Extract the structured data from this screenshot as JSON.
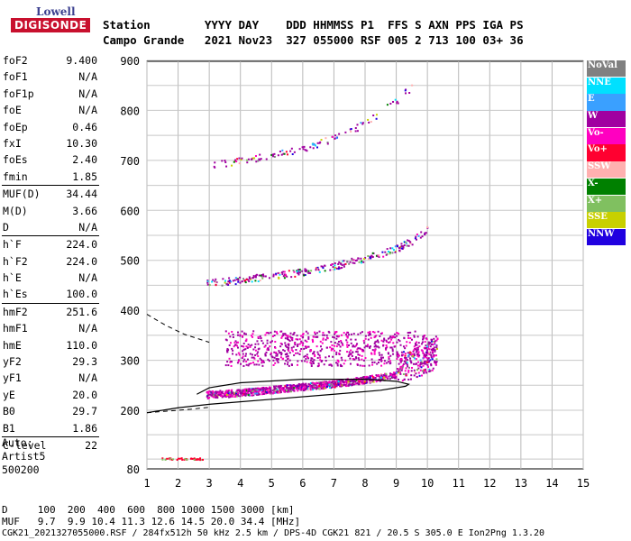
{
  "logo": {
    "brand_top": "Lowell",
    "brand_bottom": "DIGISONDE"
  },
  "header": {
    "row1": "Station        YYYY DAY    DDD HHMMSS P1  FFS S AXN PPS IGA PS",
    "row2": "Campo Grande   2021 Nov23  327 055000 RSF 005 2 713 100 03+ 36"
  },
  "params": [
    {
      "label": "foF2",
      "value": "9.400"
    },
    {
      "label": "foF1",
      "value": "N/A"
    },
    {
      "label": "foF1p",
      "value": "N/A"
    },
    {
      "label": "foE",
      "value": "N/A"
    },
    {
      "label": "foEp",
      "value": "0.46"
    },
    {
      "label": "fxI",
      "value": "10.30"
    },
    {
      "label": "foEs",
      "value": "2.40"
    },
    {
      "label": "fmin",
      "value": "1.85"
    },
    {
      "label": "MUF(D)",
      "value": "34.44",
      "sep": true
    },
    {
      "label": "M(D)",
      "value": "3.66"
    },
    {
      "label": "D",
      "value": "N/A"
    },
    {
      "label": "h`F",
      "value": "224.0",
      "sep": true
    },
    {
      "label": "h`F2",
      "value": "224.0"
    },
    {
      "label": "h`E",
      "value": "N/A"
    },
    {
      "label": "h`Es",
      "value": "100.0"
    },
    {
      "label": "hmF2",
      "value": "251.6",
      "sep": true
    },
    {
      "label": "hmF1",
      "value": "N/A"
    },
    {
      "label": "hmE",
      "value": "110.0"
    },
    {
      "label": "yF2",
      "value": "29.3"
    },
    {
      "label": "yF1",
      "value": "N/A"
    },
    {
      "label": "yE",
      "value": "20.0"
    },
    {
      "label": "B0",
      "value": "29.7"
    },
    {
      "label": "B1",
      "value": "1.86"
    },
    {
      "label": "C-level",
      "value": "22",
      "sep": true
    }
  ],
  "auto": {
    "line1": "Auto:",
    "line2": "Artist5",
    "line3": "500200"
  },
  "legend": [
    {
      "label": "NoVal",
      "color": "#808080"
    },
    {
      "label": "NNE",
      "color": "#00e0ff"
    },
    {
      "label": "E",
      "color": "#3aa0ff"
    },
    {
      "label": "W",
      "color": "#a000a0"
    },
    {
      "label": "Vo-",
      "color": "#ff00c0"
    },
    {
      "label": "Vo+",
      "color": "#ff0030"
    },
    {
      "label": "SSW",
      "color": "#ffb0b0"
    },
    {
      "label": "X-",
      "color": "#008000"
    },
    {
      "label": "X+",
      "color": "#80c060"
    },
    {
      "label": "SSE",
      "color": "#c8d000"
    },
    {
      "label": "NNW",
      "color": "#2000e0"
    }
  ],
  "chart_data": {
    "type": "scatter",
    "title": "",
    "xlabel": "",
    "ylabel": "",
    "xlim": [
      1,
      15
    ],
    "ylim": [
      80,
      900
    ],
    "x_ticks": [
      "1",
      "2",
      "3",
      "4",
      "5",
      "6",
      "7",
      "8",
      "9",
      "10",
      "11",
      "12",
      "13",
      "14",
      "15"
    ],
    "y_ticks": [
      "80",
      "200",
      "300",
      "400",
      "500",
      "600",
      "700",
      "800",
      "900"
    ],
    "grid": true,
    "series": [
      {
        "name": "trace-1",
        "values": [
          [
            2.9,
            228
          ],
          [
            4,
            232
          ],
          [
            5,
            238
          ],
          [
            6,
            244
          ],
          [
            7,
            250
          ],
          [
            8,
            258
          ],
          [
            9,
            268
          ],
          [
            9.5,
            276
          ],
          [
            10,
            288
          ],
          [
            10.3,
            300
          ]
        ]
      },
      {
        "name": "trace-2",
        "values": [
          [
            2.9,
            455
          ],
          [
            4,
            462
          ],
          [
            5,
            470
          ],
          [
            6,
            478
          ],
          [
            7,
            490
          ],
          [
            8,
            505
          ],
          [
            9,
            525
          ],
          [
            9.5,
            540
          ],
          [
            10,
            565
          ]
        ]
      },
      {
        "name": "trace-3",
        "values": [
          [
            2.9,
            690
          ],
          [
            4,
            700
          ],
          [
            5,
            712
          ],
          [
            6,
            726
          ],
          [
            7,
            745
          ],
          [
            8,
            775
          ],
          [
            9,
            820
          ],
          [
            9.5,
            850
          ]
        ]
      },
      {
        "name": "profile",
        "values": [
          [
            1,
            195
          ],
          [
            2,
            205
          ],
          [
            3,
            212
          ],
          [
            5,
            222
          ],
          [
            7,
            232
          ],
          [
            8.5,
            240
          ],
          [
            9.3,
            248
          ],
          [
            9.4,
            252
          ],
          [
            9,
            258
          ],
          [
            8,
            262
          ],
          [
            6,
            262
          ],
          [
            4,
            255
          ],
          [
            3,
            245
          ],
          [
            2.6,
            232
          ]
        ]
      },
      {
        "name": "extrapolation",
        "values": [
          [
            1,
            392
          ],
          [
            1.6,
            370
          ],
          [
            2.2,
            352
          ],
          [
            2.8,
            340
          ],
          [
            3,
            336
          ]
        ]
      }
    ]
  },
  "footer": {
    "line1": "D     100  200  400  600  800 1000 1500 3000 [km]",
    "line2": "MUF   9.7  9.9 10.4 11.3 12.6 14.5 20.0 34.4 [MHz]",
    "line3": "CGK21_2021327055000.RSF / 284fx512h 50 kHz 2.5 km / DPS-4D CGK21 821 / 20.5 S 305.0 E Ion2Png 1.3.20"
  }
}
